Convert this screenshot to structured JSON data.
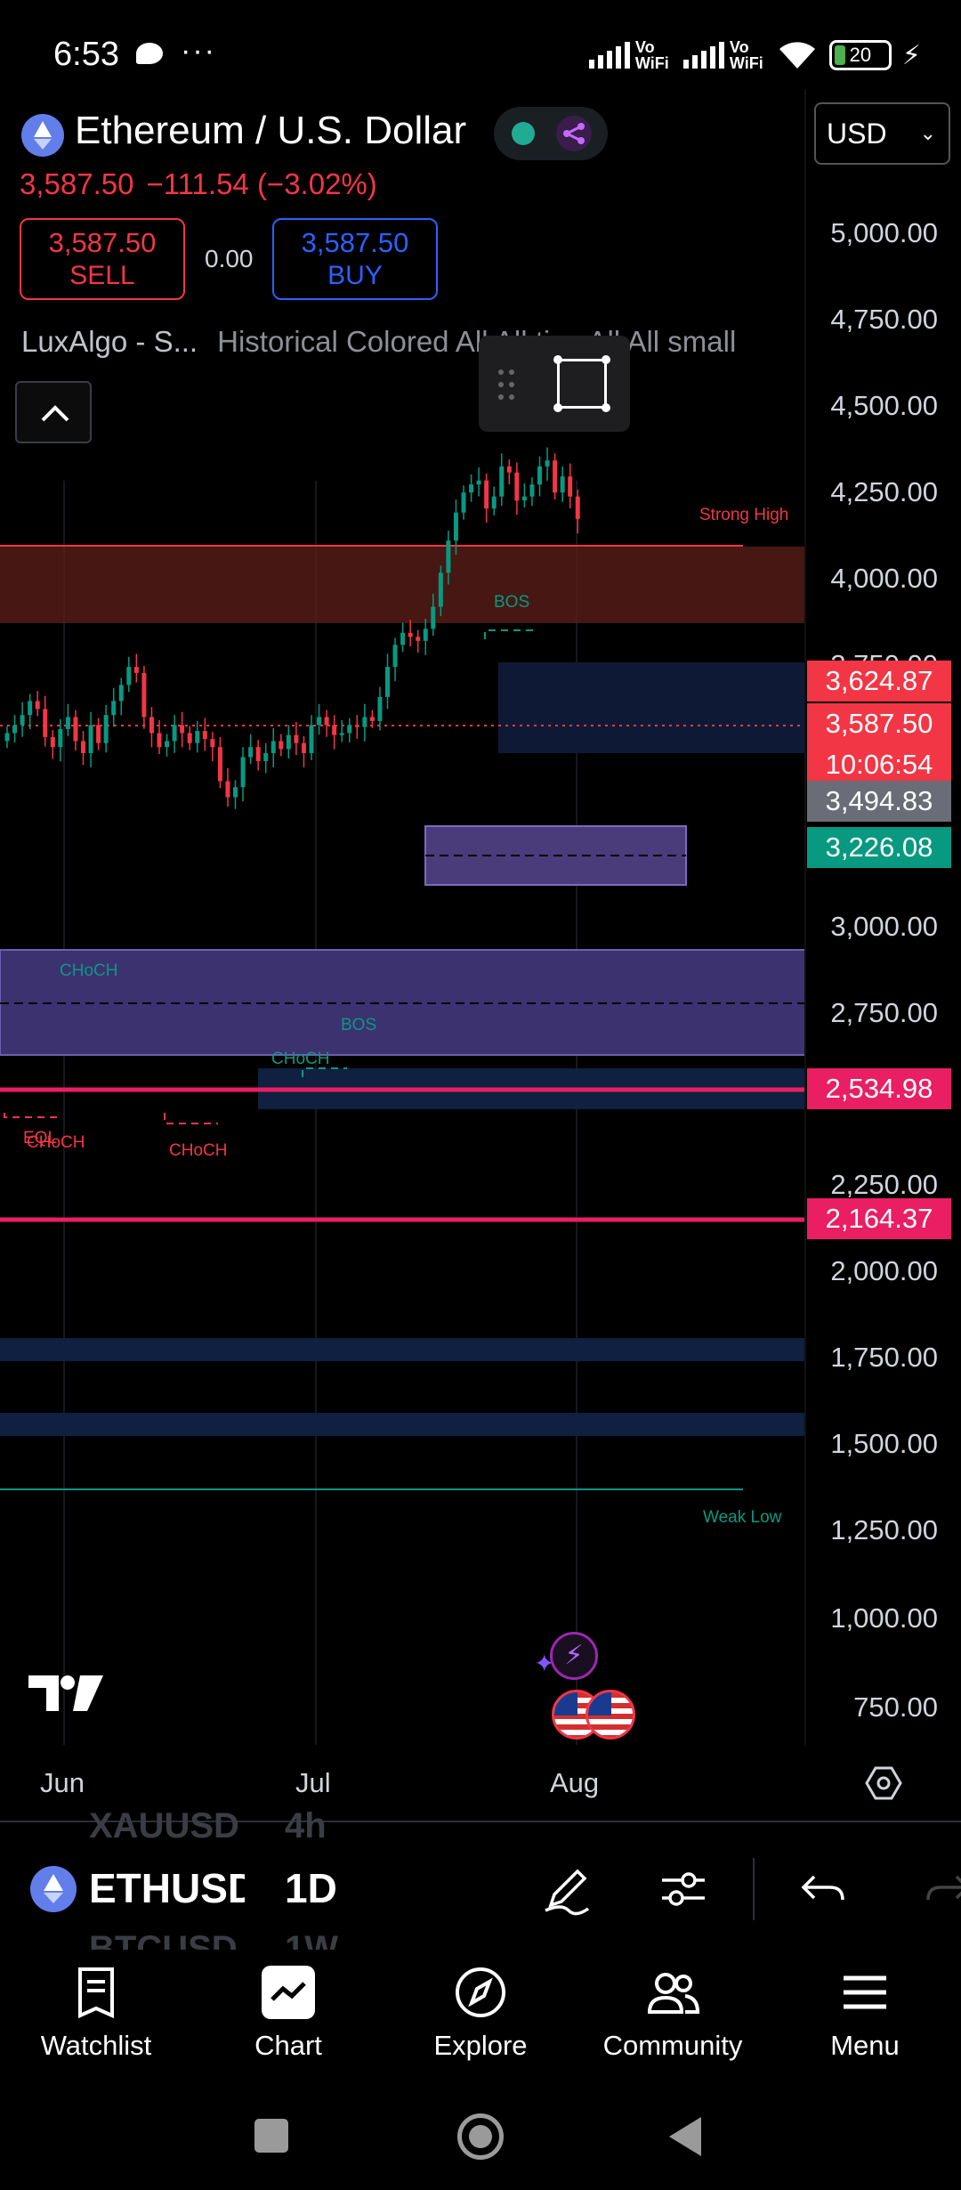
{
  "status_bar": {
    "time": "6:53",
    "more": "···",
    "network_1": "Vo WiFi",
    "network_2": "Vo WiFi",
    "battery": "20"
  },
  "header": {
    "symbol_title": "Ethereum / U.S. Dollar",
    "currency": "USD",
    "last_price": "3,587.50",
    "change": "−111.54 (−3.02%)",
    "sell_price": "3,587.50",
    "sell_label": "SELL",
    "spread": "0.00",
    "buy_price": "3,587.50",
    "buy_label": "BUY",
    "indicator_1": "LuxAlgo - S...",
    "indicator_2": "Historical Colored All All tiny All All small"
  },
  "chart": {
    "price_axis": [
      "5,000.00",
      "4,750.00",
      "4,500.00",
      "4,250.00",
      "4,000.00",
      "3,750.00",
      "3,000.00",
      "2,750.00",
      "2,250.00",
      "2,000.00",
      "1,750.00",
      "1,500.00",
      "1,250.00",
      "1,000.00",
      "750.00"
    ],
    "price_tags": {
      "high_tag": "3,624.87",
      "last_tag": "3,587.50",
      "countdown": "10:06:54",
      "gray_tag": "3,494.83",
      "green_tag": "3,226.08",
      "rose_tag_1": "2,534.98",
      "rose_tag_2": "2,164.37"
    },
    "zone_labels": {
      "strong_high": "Strong High",
      "weak_low": "Weak Low",
      "bos_top": "BOS",
      "bos_mid": "BOS",
      "choch_1": "CHoCH",
      "choch_2": "CHoCH",
      "choch_3": "CHoCH",
      "choch_4": "CHoCH",
      "eql": "EQL"
    },
    "time_axis": [
      "Jun",
      "Jul",
      "Aug"
    ]
  },
  "symbol_bar": {
    "ghost_prev_symbol": "XAUUSD",
    "ghost_prev_interval": "4h",
    "ticker": "ETHUSD",
    "interval": "1D",
    "ghost_next_symbol": "BTCUSD",
    "ghost_next_interval": "1W"
  },
  "bottom_nav": {
    "watchlist": "Watchlist",
    "chart": "Chart",
    "explore": "Explore",
    "community": "Community",
    "menu": "Menu"
  },
  "chart_data": {
    "type": "candlestick",
    "symbol": "ETHUSD",
    "interval": "1D",
    "y_axis_ticks": [
      750,
      1000,
      1250,
      1500,
      1750,
      2000,
      2250,
      2750,
      3000,
      3750,
      4000,
      4250,
      4500,
      4750,
      5000
    ],
    "x_axis_ticks": [
      "Jun",
      "Jul",
      "Aug"
    ],
    "ylim": [
      650,
      5250
    ],
    "last_price": 3587.5,
    "horizontal_levels": [
      3624.87,
      3587.5,
      3494.83,
      3226.08,
      2534.98,
      2164.37
    ],
    "closes": [
      2520,
      2560,
      2610,
      2680,
      2640,
      2500,
      2450,
      2540,
      2600,
      2480,
      2420,
      2560,
      2470,
      2610,
      2680,
      2760,
      2850,
      2820,
      2600,
      2520,
      2450,
      2480,
      2560,
      2520,
      2470,
      2530,
      2490,
      2450,
      2280,
      2200,
      2250,
      2400,
      2450,
      2380,
      2420,
      2480,
      2440,
      2510,
      2470,
      2420,
      2560,
      2600,
      2560,
      2510,
      2520,
      2560,
      2550,
      2600,
      2580,
      2700,
      2850,
      2960,
      3020,
      3000,
      2980,
      3040,
      3150,
      3320,
      3480,
      3620,
      3720,
      3760,
      3780,
      3640,
      3700,
      3850,
      3820,
      3680,
      3700,
      3760,
      3850,
      3880,
      3720,
      3800,
      3700,
      3587.5
    ]
  }
}
